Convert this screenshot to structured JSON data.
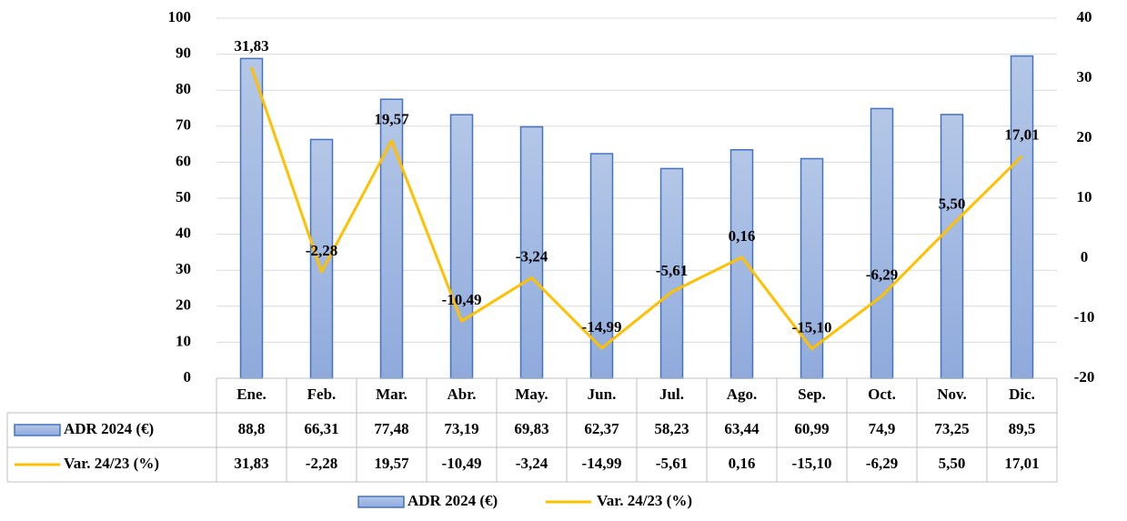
{
  "chart_data": {
    "type": "bar-line",
    "categories": [
      "Ene.",
      "Feb.",
      "Mar.",
      "Abr.",
      "May.",
      "Jun.",
      "Jul.",
      "Ago.",
      "Sep.",
      "Oct.",
      "Nov.",
      "Dic."
    ],
    "series": [
      {
        "name": "ADR 2024 (€)",
        "type": "bar",
        "color": "#8faadc",
        "edgecolor": "#4472c4",
        "values": [
          88.8,
          66.31,
          77.48,
          73.19,
          69.83,
          62.37,
          58.23,
          63.44,
          60.99,
          74.9,
          73.25,
          89.5
        ],
        "value_labels": [
          "88,8",
          "66,31",
          "77,48",
          "73,19",
          "69,83",
          "62,37",
          "58,23",
          "63,44",
          "60,99",
          "74,9",
          "73,25",
          "89,5"
        ]
      },
      {
        "name": "Var. 24/23 (%)",
        "type": "line",
        "axis": "y2",
        "color": "#ffc000",
        "values": [
          31.83,
          -2.28,
          19.57,
          -10.49,
          -3.24,
          -14.99,
          -5.61,
          0.16,
          -15.1,
          -6.29,
          5.5,
          17.01
        ],
        "value_labels": [
          "31,83",
          "-2,28",
          "19,57",
          "-10,49",
          "-3,24",
          "-14,99",
          "-5,61",
          "0,16",
          "-15,10",
          "-6,29",
          "5,50",
          "17,01"
        ]
      }
    ],
    "ylim": [
      0,
      100
    ],
    "yticks": [
      0,
      10,
      20,
      30,
      40,
      50,
      60,
      70,
      80,
      90,
      100
    ],
    "y2lim": [
      -20,
      40
    ],
    "y2ticks": [
      -20,
      -10,
      0,
      10,
      20,
      30,
      40
    ],
    "grid": true,
    "data_table": true,
    "legend": "bottom"
  }
}
